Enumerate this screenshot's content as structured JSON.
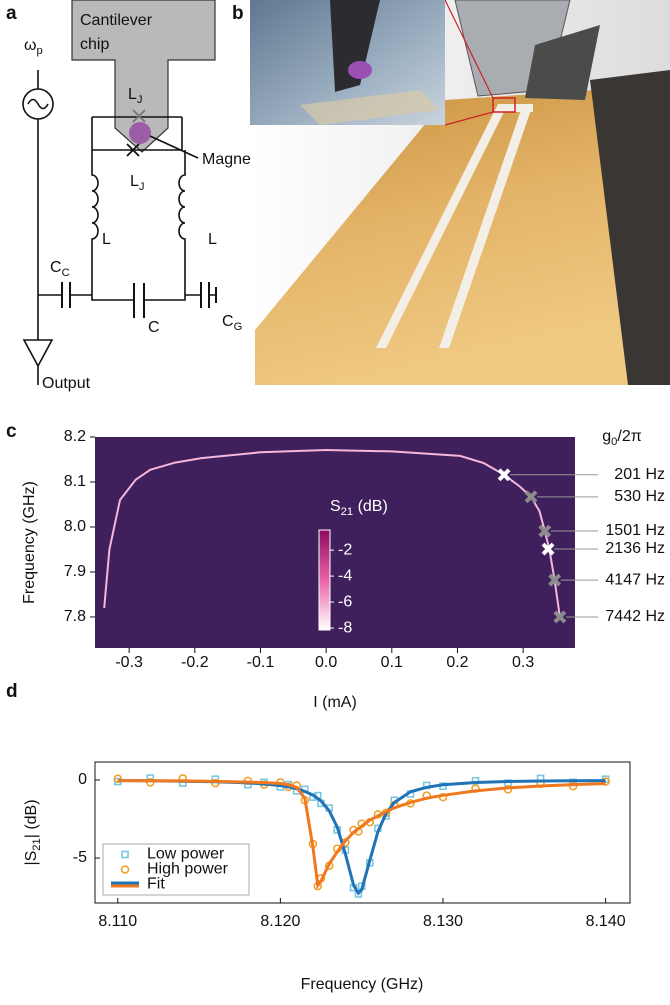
{
  "panel_labels": [
    "a",
    "b",
    "c",
    "d"
  ],
  "circuit": {
    "chip": [
      "Cantilever",
      "chip"
    ],
    "magnet": "Magnet",
    "junction": [
      "L",
      "J"
    ],
    "inductor": "L",
    "capacitor": "C",
    "coupling_capacitor": [
      "C",
      "C"
    ],
    "ground_capacitor": [
      "C",
      "G"
    ],
    "pump": [
      "ω",
      "p"
    ],
    "output": "Output"
  },
  "chart_data": [
    {
      "type": "heatmap",
      "xlabel": "I (mA)",
      "ylabel": "Frequency (GHz)",
      "xlim": [
        -0.352,
        0.379
      ],
      "ylim": [
        7.731,
        8.2
      ],
      "xticks": [
        -0.3,
        -0.2,
        -0.1,
        {
          "value": 0,
          "label": "0.0"
        },
        0.1,
        0.2,
        0.3
      ],
      "yticks": [
        7.8,
        7.9,
        {
          "value": 8,
          "label": "8.0"
        },
        8.1,
        8.2
      ],
      "background": "#3f1f5c",
      "curve_color": "#f6b7dc",
      "curve": {
        "x": [
          -0.338,
          -0.33,
          -0.314,
          -0.29,
          -0.268,
          -0.23,
          -0.19,
          -0.1,
          0,
          0.1,
          0.204,
          0.24,
          0.271,
          0.295,
          0.312,
          0.325,
          0.333,
          0.34,
          0.348,
          0.356
        ],
        "y": [
          7.82,
          7.95,
          8.06,
          8.105,
          8.127,
          8.143,
          8.153,
          8.166,
          8.171,
          8.168,
          8.158,
          8.142,
          8.116,
          8.09,
          8.067,
          8.035,
          7.991,
          7.95,
          7.882,
          7.8
        ]
      },
      "colorbar": {
        "label": [
          "S",
          "21",
          " (dB)"
        ],
        "clim": [
          -8.15,
          -0.45
        ],
        "ticks": [
          -2,
          -4,
          -6,
          -8
        ],
        "colormap": [
          "#ffffff",
          "#ea63a8",
          "#8a0c5e"
        ]
      },
      "markers": {
        "header": [
          "g",
          "0",
          "/2π"
        ],
        "x": [
          0.271,
          0.312,
          0.333,
          0.338,
          0.348,
          0.356
        ],
        "y": [
          8.116,
          8.067,
          7.991,
          7.951,
          7.882,
          7.8
        ],
        "labels": [
          "201 Hz",
          "530 Hz",
          "1501 Hz",
          "2136 Hz",
          "4147 Hz",
          "7442 Hz"
        ],
        "colors": [
          "#ffffff",
          "#8c8c8c",
          "#8c8c8c",
          "#ffffff",
          "#8c8c8c",
          "#8c8c8c"
        ]
      }
    },
    {
      "type": "scatter",
      "xlabel": "Frequency (GHz)",
      "ylabel": [
        "|S",
        "21",
        "| (dB)"
      ],
      "xlim": [
        8.1086,
        8.1415
      ],
      "ylim": [
        -7.88,
        1.15
      ],
      "xticks": [
        {
          "value": 8.11,
          "label": "8.110"
        },
        {
          "value": 8.12,
          "label": "8.120"
        },
        {
          "value": 8.13,
          "label": "8.130"
        },
        {
          "value": 8.14,
          "label": "8.140"
        }
      ],
      "yticks": [
        -5,
        0
      ],
      "legend": "lower left",
      "x": [
        8.11,
        8.112,
        8.114,
        8.116,
        8.118,
        8.119,
        8.12,
        8.1205,
        8.121,
        8.1215,
        8.122,
        8.1223,
        8.1225,
        8.123,
        8.1235,
        8.124,
        8.1245,
        8.1248,
        8.125,
        8.1255,
        8.126,
        8.1265,
        8.127,
        8.128,
        8.129,
        8.13,
        8.132,
        8.134,
        8.136,
        8.138,
        8.14
      ],
      "series": [
        {
          "name": "Low power",
          "marker": "square",
          "color": "#7cc6e0",
          "values": [
            -0.1,
            0.12,
            -0.2,
            0.05,
            -0.3,
            -0.15,
            -0.45,
            -0.3,
            -0.7,
            -0.6,
            -1.1,
            -1.0,
            -1.5,
            -1.8,
            -3.2,
            -4.5,
            -6.9,
            -7.3,
            -6.8,
            -5.3,
            -3.1,
            -2.3,
            -1.3,
            -0.9,
            -0.35,
            -0.4,
            -0.05,
            -0.2,
            0.1,
            -0.15,
            0.05
          ]
        },
        {
          "name": "High power",
          "marker": "circle",
          "color": "#f2a02a",
          "values": [
            0.08,
            -0.15,
            0.1,
            -0.2,
            -0.05,
            -0.3,
            -0.15,
            -0.45,
            -0.35,
            -1.3,
            -4.1,
            -6.8,
            -6.3,
            -5.5,
            -4.4,
            -4.0,
            -3.2,
            -3.3,
            -2.8,
            -2.7,
            -2.2,
            -2.1,
            -1.6,
            -1.5,
            -1.0,
            -1.1,
            -0.55,
            -0.6,
            -0.25,
            -0.4,
            -0.1
          ]
        },
        {
          "name": "Fit",
          "marker": "line",
          "colors": [
            "#1f73b7",
            "#f0781f"
          ],
          "curves": [
            [
              -0.04,
              -0.05,
              -0.08,
              -0.11,
              -0.19,
              -0.25,
              -0.36,
              -0.44,
              -0.56,
              -0.73,
              -0.97,
              -1.18,
              -1.35,
              -1.97,
              -3.03,
              -4.74,
              -6.75,
              -7.25,
              -7.02,
              -5.16,
              -3.32,
              -2.14,
              -1.45,
              -0.76,
              -0.47,
              -0.31,
              -0.16,
              -0.1,
              -0.07,
              -0.05,
              -0.04
            ],
            [
              -0.04,
              -0.05,
              -0.06,
              -0.09,
              -0.14,
              -0.17,
              -0.23,
              -0.31,
              -0.47,
              -1.17,
              -4.29,
              -6.75,
              -6.47,
              -5.38,
              -4.6,
              -3.9,
              -3.35,
              -3.12,
              -2.96,
              -2.57,
              -2.3,
              -2.03,
              -1.79,
              -1.44,
              -1.17,
              -0.98,
              -0.7,
              -0.51,
              -0.39,
              -0.3,
              -0.23
            ]
          ]
        }
      ]
    }
  ]
}
